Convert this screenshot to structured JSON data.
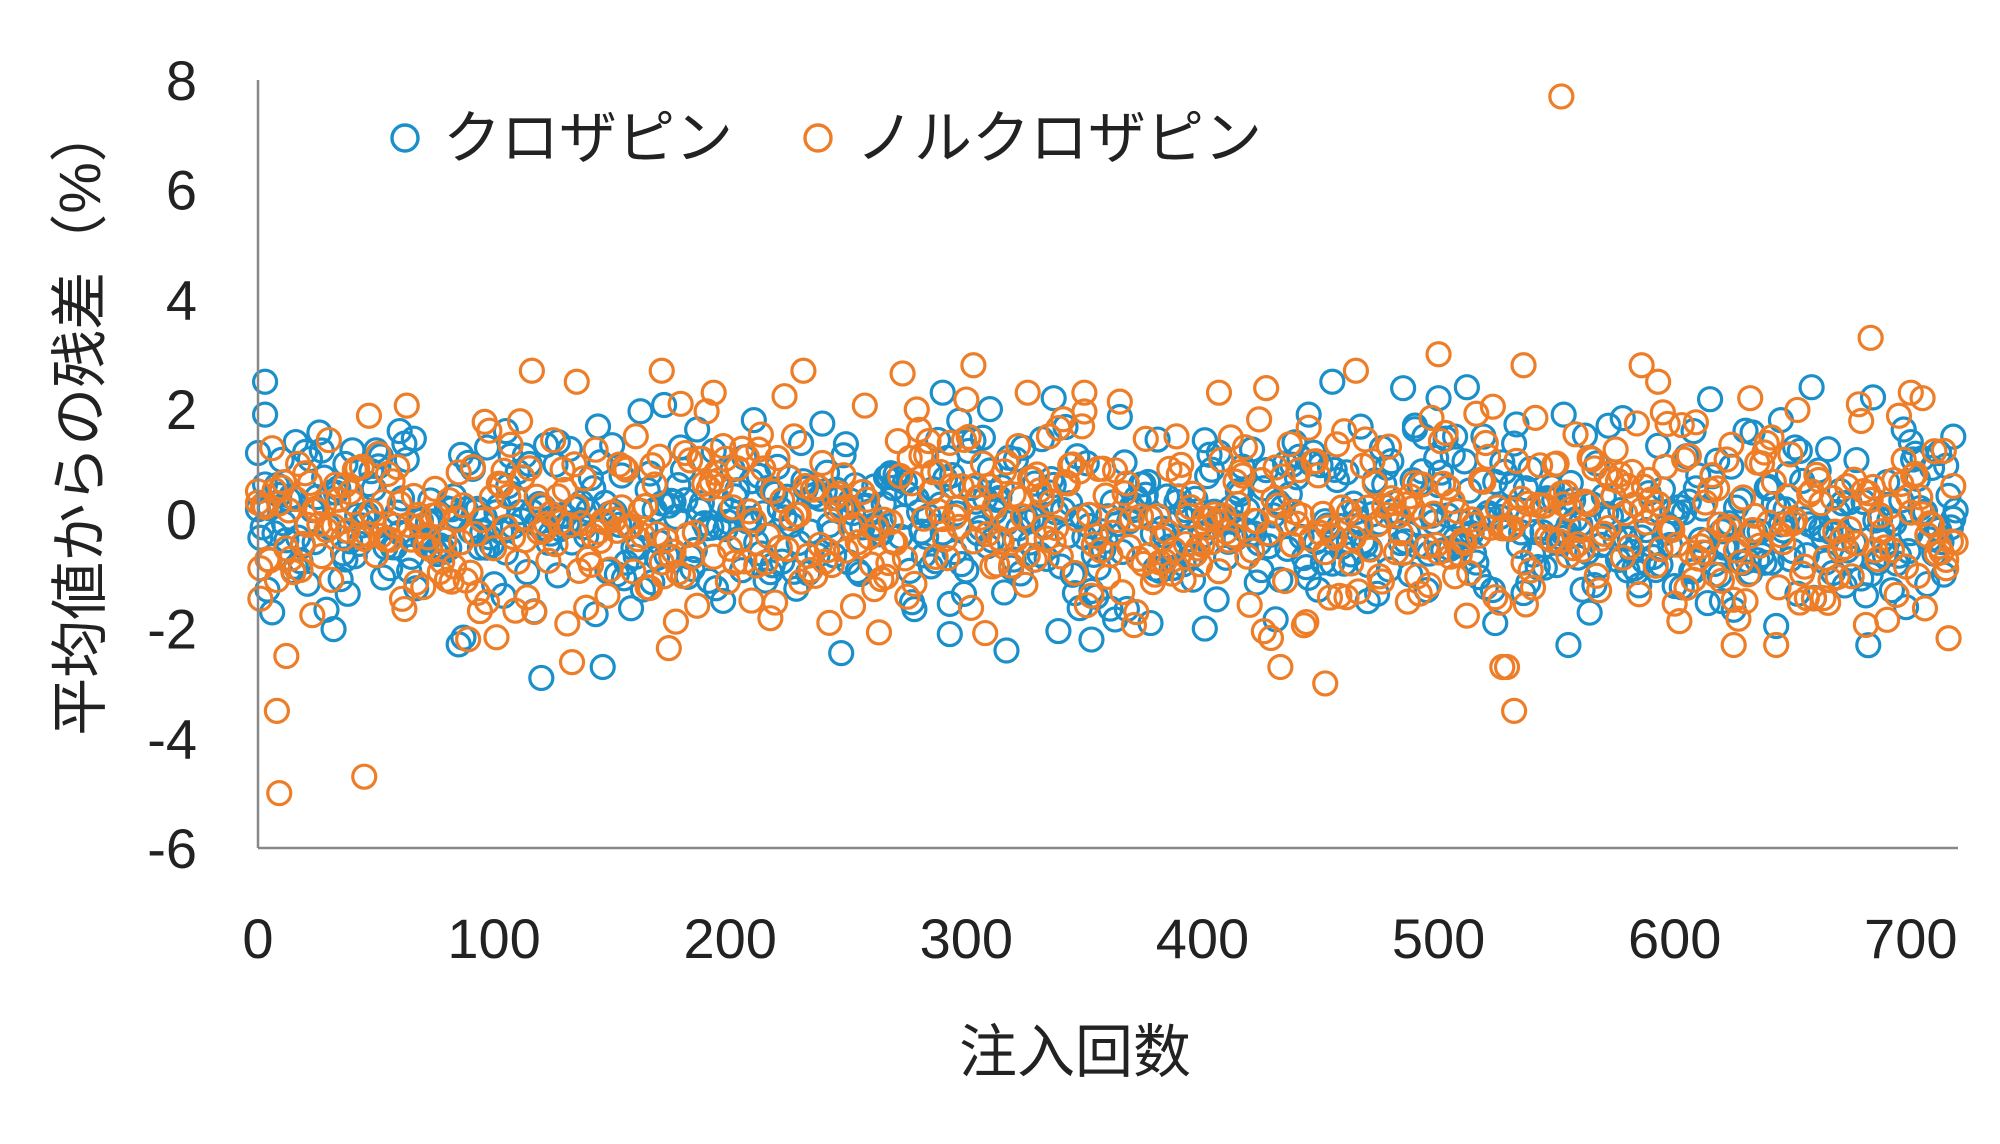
{
  "chart_data": {
    "type": "scatter",
    "xlabel": "注入回数",
    "ylabel": "平均値からの残差（%）",
    "xlim": [
      0,
      720
    ],
    "ylim": [
      -6,
      8
    ],
    "x_ticks": [
      0,
      100,
      200,
      300,
      400,
      500,
      600,
      700
    ],
    "y_ticks": [
      -6,
      -4,
      -2,
      0,
      2,
      4,
      6,
      8
    ],
    "grid": false,
    "legend_position": "top-left",
    "marker": "open-circle",
    "n_points": 720,
    "series": [
      {
        "name": "クロザピン",
        "color": "#1a8fc9",
        "values": [
          {
            "x": 0,
            "y": 1.2
          },
          {
            "x": 3,
            "y": 2.5
          },
          {
            "x": 3,
            "y": 1.9
          },
          {
            "x": 16,
            "y": 1.4
          },
          {
            "x": 37,
            "y": 1.0
          },
          {
            "x": 60,
            "y": 1.6
          },
          {
            "x": 97,
            "y": 1.3
          },
          {
            "x": 105,
            "y": 1.6
          },
          {
            "x": 120,
            "y": -2.9
          },
          {
            "x": 127,
            "y": 1.4
          },
          {
            "x": 210,
            "y": 1.8
          },
          {
            "x": 290,
            "y": 2.3
          },
          {
            "x": 293,
            "y": -2.1
          },
          {
            "x": 310,
            "y": 2.0
          },
          {
            "x": 317,
            "y": -2.4
          },
          {
            "x": 337,
            "y": 2.2
          },
          {
            "x": 353,
            "y": -2.2
          },
          {
            "x": 378,
            "y": -1.9
          },
          {
            "x": 401,
            "y": -2.0
          },
          {
            "x": 445,
            "y": 1.9
          },
          {
            "x": 455,
            "y": 2.5
          },
          {
            "x": 470,
            "y": -1.5
          },
          {
            "x": 490,
            "y": 1.7
          },
          {
            "x": 500,
            "y": 2.2
          },
          {
            "x": 507,
            "y": 1.5
          },
          {
            "x": 512,
            "y": 2.4
          },
          {
            "x": 519,
            "y": 1.5
          },
          {
            "x": 524,
            "y": -1.9
          },
          {
            "x": 553,
            "y": 1.9
          },
          {
            "x": 555,
            "y": -2.3
          },
          {
            "x": 608,
            "y": 1.6
          },
          {
            "x": 620,
            "y": -1.5
          },
          {
            "x": 645,
            "y": 1.8
          },
          {
            "x": 700,
            "y": 1.4
          },
          {
            "x": 712,
            "y": 1.2
          },
          {
            "x": 718,
            "y": 0.0
          }
        ],
        "trend_mean": 0.0,
        "spread_sd": 0.8
      },
      {
        "name": "ノルクロザピン",
        "color": "#ee7d28",
        "values": [
          {
            "x": 0,
            "y": 0.5
          },
          {
            "x": 1,
            "y": -0.9
          },
          {
            "x": 8,
            "y": -3.5
          },
          {
            "x": 9,
            "y": -5.0
          },
          {
            "x": 12,
            "y": -2.5
          },
          {
            "x": 45,
            "y": -4.7
          },
          {
            "x": 135,
            "y": 2.5
          },
          {
            "x": 171,
            "y": 2.7
          },
          {
            "x": 193,
            "y": 2.3
          },
          {
            "x": 303,
            "y": 2.8
          },
          {
            "x": 326,
            "y": 2.3
          },
          {
            "x": 350,
            "y": 2.3
          },
          {
            "x": 407,
            "y": 2.3
          },
          {
            "x": 452,
            "y": -3.0
          },
          {
            "x": 500,
            "y": 3.0
          },
          {
            "x": 527,
            "y": -2.7
          },
          {
            "x": 532,
            "y": -3.5
          },
          {
            "x": 536,
            "y": 2.8
          },
          {
            "x": 552,
            "y": 7.7
          },
          {
            "x": 586,
            "y": 2.8
          },
          {
            "x": 593,
            "y": 2.5
          },
          {
            "x": 625,
            "y": -2.3
          },
          {
            "x": 632,
            "y": 2.2
          },
          {
            "x": 683,
            "y": 3.3
          },
          {
            "x": 700,
            "y": 2.3
          },
          {
            "x": 705,
            "y": 2.2
          },
          {
            "x": 715,
            "y": -0.9
          }
        ],
        "trend_mean": 0.0,
        "spread_sd": 1.0
      }
    ]
  }
}
